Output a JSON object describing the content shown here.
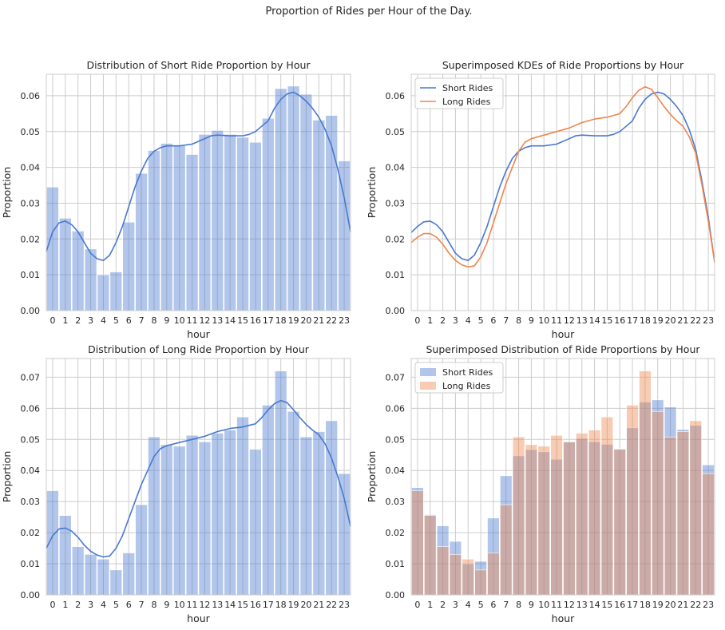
{
  "suptitle": "Proportion of Rides per Hour of the Day.",
  "colors": {
    "short": "#4878d0",
    "long": "#ee854a",
    "short_fill": "#a4b9e9",
    "long_fill": "#f5bd9c",
    "grid": "#cccccc",
    "frame": "#cccccc"
  },
  "chart_data": [
    {
      "id": "short_hist",
      "type": "bar",
      "title": "Distribution of Short Ride Proportion by Hour",
      "xlabel": "hour",
      "ylabel": "Proportion",
      "categories": [
        "0",
        "1",
        "2",
        "3",
        "4",
        "5",
        "6",
        "7",
        "8",
        "9",
        "10",
        "11",
        "12",
        "13",
        "14",
        "15",
        "16",
        "17",
        "18",
        "19",
        "20",
        "21",
        "22",
        "23"
      ],
      "ylim": [
        0,
        0.066
      ],
      "yticks": [
        "0.00",
        "0.01",
        "0.02",
        "0.03",
        "0.04",
        "0.05",
        "0.06"
      ],
      "grid": true,
      "series": [
        {
          "values": [
            0.0345,
            0.0258,
            0.0222,
            0.0172,
            0.01,
            0.0108,
            0.0247,
            0.0383,
            0.0447,
            0.0467,
            0.046,
            0.0436,
            0.0492,
            0.0503,
            0.0492,
            0.0484,
            0.047,
            0.0537,
            0.062,
            0.0627,
            0.0604,
            0.0532,
            0.0545,
            0.0418
          ]
        }
      ],
      "kde": [
        [
          -0.5,
          0.0165
        ],
        [
          0,
          0.022
        ],
        [
          0.5,
          0.0245
        ],
        [
          1,
          0.025
        ],
        [
          1.5,
          0.024
        ],
        [
          2,
          0.022
        ],
        [
          2.5,
          0.019
        ],
        [
          3,
          0.016
        ],
        [
          3.5,
          0.0145
        ],
        [
          4,
          0.014
        ],
        [
          4.5,
          0.0155
        ],
        [
          5,
          0.019
        ],
        [
          5.5,
          0.0235
        ],
        [
          6,
          0.029
        ],
        [
          6.5,
          0.0345
        ],
        [
          7,
          0.039
        ],
        [
          7.5,
          0.0425
        ],
        [
          8,
          0.0445
        ],
        [
          8.5,
          0.0455
        ],
        [
          9,
          0.046
        ],
        [
          10,
          0.046
        ],
        [
          11,
          0.0465
        ],
        [
          12,
          0.048
        ],
        [
          12.5,
          0.0488
        ],
        [
          13,
          0.049
        ],
        [
          14,
          0.0488
        ],
        [
          15,
          0.0488
        ],
        [
          15.5,
          0.0492
        ],
        [
          16,
          0.05
        ],
        [
          17,
          0.053
        ],
        [
          17.5,
          0.0565
        ],
        [
          18,
          0.059
        ],
        [
          18.5,
          0.0605
        ],
        [
          19,
          0.061
        ],
        [
          19.5,
          0.06
        ],
        [
          20,
          0.0585
        ],
        [
          20.5,
          0.0565
        ],
        [
          21,
          0.054
        ],
        [
          21.5,
          0.0505
        ],
        [
          22,
          0.046
        ],
        [
          22.5,
          0.0395
        ],
        [
          23,
          0.0315
        ],
        [
          23.5,
          0.022
        ]
      ]
    },
    {
      "id": "kde_compare",
      "type": "line",
      "title": "Superimposed KDEs of Ride Proportions by Hour",
      "xlabel": "hour",
      "ylabel": "Proportion",
      "categories": [
        "0",
        "1",
        "2",
        "3",
        "4",
        "5",
        "6",
        "7",
        "8",
        "9",
        "10",
        "11",
        "12",
        "13",
        "14",
        "15",
        "16",
        "17",
        "18",
        "19",
        "20",
        "21",
        "22",
        "23"
      ],
      "ylim": [
        0,
        0.066
      ],
      "yticks": [
        "0.00",
        "0.01",
        "0.02",
        "0.03",
        "0.04",
        "0.05",
        "0.06"
      ],
      "grid": true,
      "legend_position": "upper left",
      "series": [
        {
          "name": "Short Rides",
          "color_key": "short",
          "points": [
            [
              -0.5,
              0.0218
            ],
            [
              0,
              0.0235
            ],
            [
              0.5,
              0.0248
            ],
            [
              1,
              0.025
            ],
            [
              1.5,
              0.024
            ],
            [
              2,
              0.022
            ],
            [
              2.5,
              0.019
            ],
            [
              3,
              0.016
            ],
            [
              3.5,
              0.0145
            ],
            [
              4,
              0.014
            ],
            [
              4.5,
              0.0155
            ],
            [
              5,
              0.019
            ],
            [
              5.5,
              0.0235
            ],
            [
              6,
              0.029
            ],
            [
              6.5,
              0.0345
            ],
            [
              7,
              0.039
            ],
            [
              7.5,
              0.0425
            ],
            [
              8,
              0.0445
            ],
            [
              8.5,
              0.0455
            ],
            [
              9,
              0.046
            ],
            [
              10,
              0.046
            ],
            [
              11,
              0.0465
            ],
            [
              12,
              0.048
            ],
            [
              12.5,
              0.0488
            ],
            [
              13,
              0.049
            ],
            [
              14,
              0.0488
            ],
            [
              15,
              0.0488
            ],
            [
              15.5,
              0.0492
            ],
            [
              16,
              0.05
            ],
            [
              17,
              0.053
            ],
            [
              17.5,
              0.0565
            ],
            [
              18,
              0.059
            ],
            [
              18.5,
              0.0605
            ],
            [
              19,
              0.061
            ],
            [
              19.5,
              0.0605
            ],
            [
              20,
              0.059
            ],
            [
              20.5,
              0.057
            ],
            [
              21,
              0.0545
            ],
            [
              21.5,
              0.0505
            ],
            [
              22,
              0.045
            ],
            [
              22.5,
              0.036
            ],
            [
              23,
              0.026
            ],
            [
              23.5,
              0.0135
            ]
          ]
        },
        {
          "name": "Long Rides",
          "color_key": "long",
          "points": [
            [
              -0.5,
              0.019
            ],
            [
              0,
              0.0205
            ],
            [
              0.5,
              0.0215
            ],
            [
              1,
              0.0215
            ],
            [
              1.5,
              0.0205
            ],
            [
              2,
              0.0185
            ],
            [
              2.5,
              0.016
            ],
            [
              3,
              0.014
            ],
            [
              3.5,
              0.0128
            ],
            [
              4,
              0.0122
            ],
            [
              4.5,
              0.0125
            ],
            [
              5,
              0.015
            ],
            [
              5.5,
              0.019
            ],
            [
              6,
              0.0245
            ],
            [
              6.5,
              0.03
            ],
            [
              7,
              0.0355
            ],
            [
              7.5,
              0.04
            ],
            [
              8,
              0.0445
            ],
            [
              8.5,
              0.047
            ],
            [
              9,
              0.048
            ],
            [
              10,
              0.049
            ],
            [
              11,
              0.05
            ],
            [
              12,
              0.051
            ],
            [
              13,
              0.0525
            ],
            [
              14,
              0.0535
            ],
            [
              15,
              0.054
            ],
            [
              15.5,
              0.0545
            ],
            [
              16,
              0.055
            ],
            [
              16.5,
              0.057
            ],
            [
              17,
              0.0595
            ],
            [
              17.5,
              0.0615
            ],
            [
              18,
              0.0625
            ],
            [
              18.5,
              0.0618
            ],
            [
              19,
              0.0595
            ],
            [
              19.5,
              0.057
            ],
            [
              20,
              0.0548
            ],
            [
              20.5,
              0.053
            ],
            [
              21,
              0.0515
            ],
            [
              21.5,
              0.0485
            ],
            [
              22,
              0.044
            ],
            [
              22.5,
              0.035
            ],
            [
              23,
              0.025
            ],
            [
              23.5,
              0.0135
            ]
          ]
        }
      ]
    },
    {
      "id": "long_hist",
      "type": "bar",
      "title": "Distribution of Long Ride Proportion by Hour",
      "xlabel": "hour",
      "ylabel": "Proportion",
      "categories": [
        "0",
        "1",
        "2",
        "3",
        "4",
        "5",
        "6",
        "7",
        "8",
        "9",
        "10",
        "11",
        "12",
        "13",
        "14",
        "15",
        "16",
        "17",
        "18",
        "19",
        "20",
        "21",
        "22",
        "23"
      ],
      "ylim": [
        0,
        0.076
      ],
      "yticks": [
        "0.00",
        "0.01",
        "0.02",
        "0.03",
        "0.04",
        "0.05",
        "0.06",
        "0.07"
      ],
      "grid": true,
      "series": [
        {
          "values": [
            0.0335,
            0.0255,
            0.0155,
            0.013,
            0.0115,
            0.008,
            0.0135,
            0.029,
            0.0508,
            0.0483,
            0.0478,
            0.0513,
            0.0492,
            0.052,
            0.053,
            0.0572,
            0.0468,
            0.061,
            0.072,
            0.059,
            0.0508,
            0.0525,
            0.056,
            0.039
          ]
        }
      ],
      "kde": [
        [
          -0.5,
          0.015
        ],
        [
          0,
          0.019
        ],
        [
          0.5,
          0.0212
        ],
        [
          1,
          0.0215
        ],
        [
          1.5,
          0.0205
        ],
        [
          2,
          0.0185
        ],
        [
          2.5,
          0.016
        ],
        [
          3,
          0.014
        ],
        [
          3.5,
          0.0128
        ],
        [
          4,
          0.0122
        ],
        [
          4.5,
          0.0125
        ],
        [
          5,
          0.015
        ],
        [
          5.5,
          0.019
        ],
        [
          6,
          0.0245
        ],
        [
          6.5,
          0.03
        ],
        [
          7,
          0.0355
        ],
        [
          7.5,
          0.04
        ],
        [
          8,
          0.0445
        ],
        [
          8.5,
          0.047
        ],
        [
          9,
          0.048
        ],
        [
          10,
          0.049
        ],
        [
          11,
          0.05
        ],
        [
          12,
          0.051
        ],
        [
          13,
          0.0525
        ],
        [
          14,
          0.0535
        ],
        [
          15,
          0.054
        ],
        [
          15.5,
          0.0545
        ],
        [
          16,
          0.055
        ],
        [
          16.5,
          0.057
        ],
        [
          17,
          0.0595
        ],
        [
          17.5,
          0.0615
        ],
        [
          18,
          0.0625
        ],
        [
          18.5,
          0.0618
        ],
        [
          19,
          0.0595
        ],
        [
          19.5,
          0.057
        ],
        [
          20,
          0.0548
        ],
        [
          20.5,
          0.053
        ],
        [
          21,
          0.0515
        ],
        [
          21.5,
          0.0485
        ],
        [
          22,
          0.044
        ],
        [
          22.5,
          0.038
        ],
        [
          23,
          0.031
        ],
        [
          23.5,
          0.022
        ]
      ]
    },
    {
      "id": "hist_compare",
      "type": "bar",
      "title": "Superimposed Distribution of Ride Proportions by Hour",
      "xlabel": "hour",
      "ylabel": "Proportion",
      "categories": [
        "0",
        "1",
        "2",
        "3",
        "4",
        "5",
        "6",
        "7",
        "8",
        "9",
        "10",
        "11",
        "12",
        "13",
        "14",
        "15",
        "16",
        "17",
        "18",
        "19",
        "20",
        "21",
        "22",
        "23"
      ],
      "ylim": [
        0,
        0.076
      ],
      "yticks": [
        "0.00",
        "0.01",
        "0.02",
        "0.03",
        "0.04",
        "0.05",
        "0.06",
        "0.07"
      ],
      "grid": true,
      "legend_position": "upper left",
      "series": [
        {
          "name": "Short Rides",
          "color_key": "short",
          "values": [
            0.0345,
            0.0258,
            0.0222,
            0.0172,
            0.01,
            0.0108,
            0.0247,
            0.0383,
            0.0447,
            0.0467,
            0.046,
            0.0436,
            0.0492,
            0.0503,
            0.0492,
            0.0484,
            0.047,
            0.0537,
            0.062,
            0.0627,
            0.0604,
            0.0532,
            0.0545,
            0.0418
          ]
        },
        {
          "name": "Long Rides",
          "color_key": "long",
          "values": [
            0.0335,
            0.0255,
            0.0155,
            0.013,
            0.0115,
            0.008,
            0.0135,
            0.029,
            0.0508,
            0.0483,
            0.0478,
            0.0513,
            0.0492,
            0.052,
            0.053,
            0.0572,
            0.0468,
            0.061,
            0.072,
            0.059,
            0.0508,
            0.0525,
            0.056,
            0.039
          ]
        }
      ]
    }
  ]
}
